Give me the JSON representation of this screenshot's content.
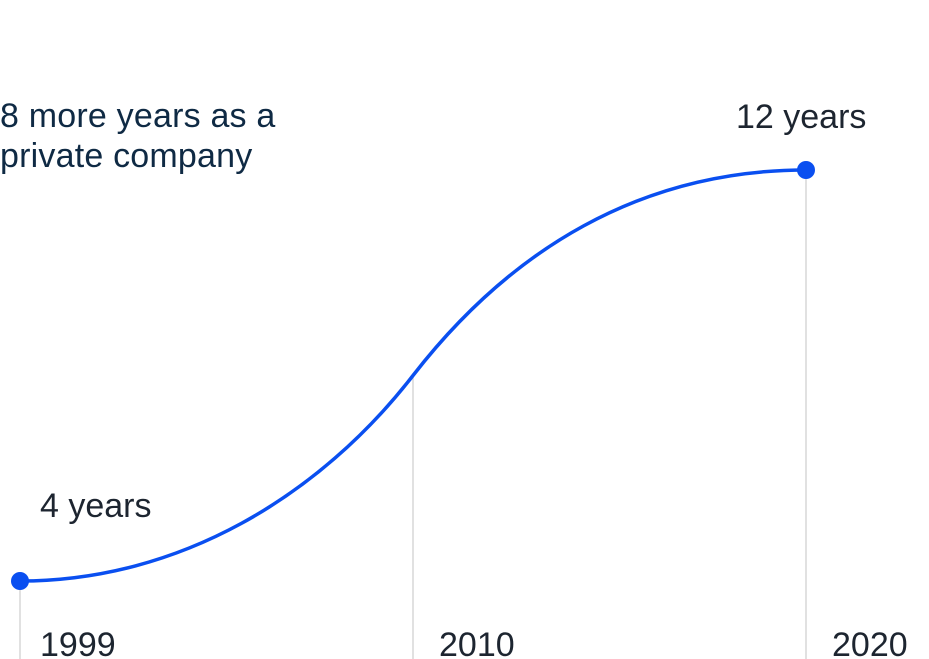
{
  "chart_data": {
    "type": "line",
    "x": [
      1999,
      2010,
      2020
    ],
    "series": [
      {
        "values": [
          4,
          8,
          12
        ]
      }
    ],
    "point_labels": [
      "4 years",
      "",
      "12 years"
    ],
    "annotations": [
      {
        "text": "8 more years as a private company"
      }
    ],
    "tick_labels": [
      "1999",
      "2010",
      "2020"
    ],
    "xlim": [
      1999,
      2020
    ],
    "ylim": [
      4,
      12
    ],
    "grid": "vertical lines at each year",
    "legend": "none",
    "colors": {
      "line": "#0a4ff0",
      "marker": "#0a4ff0",
      "guide": "#d7d7d7",
      "text": "#1d2530",
      "annotation_text": "#0f2a44"
    }
  }
}
